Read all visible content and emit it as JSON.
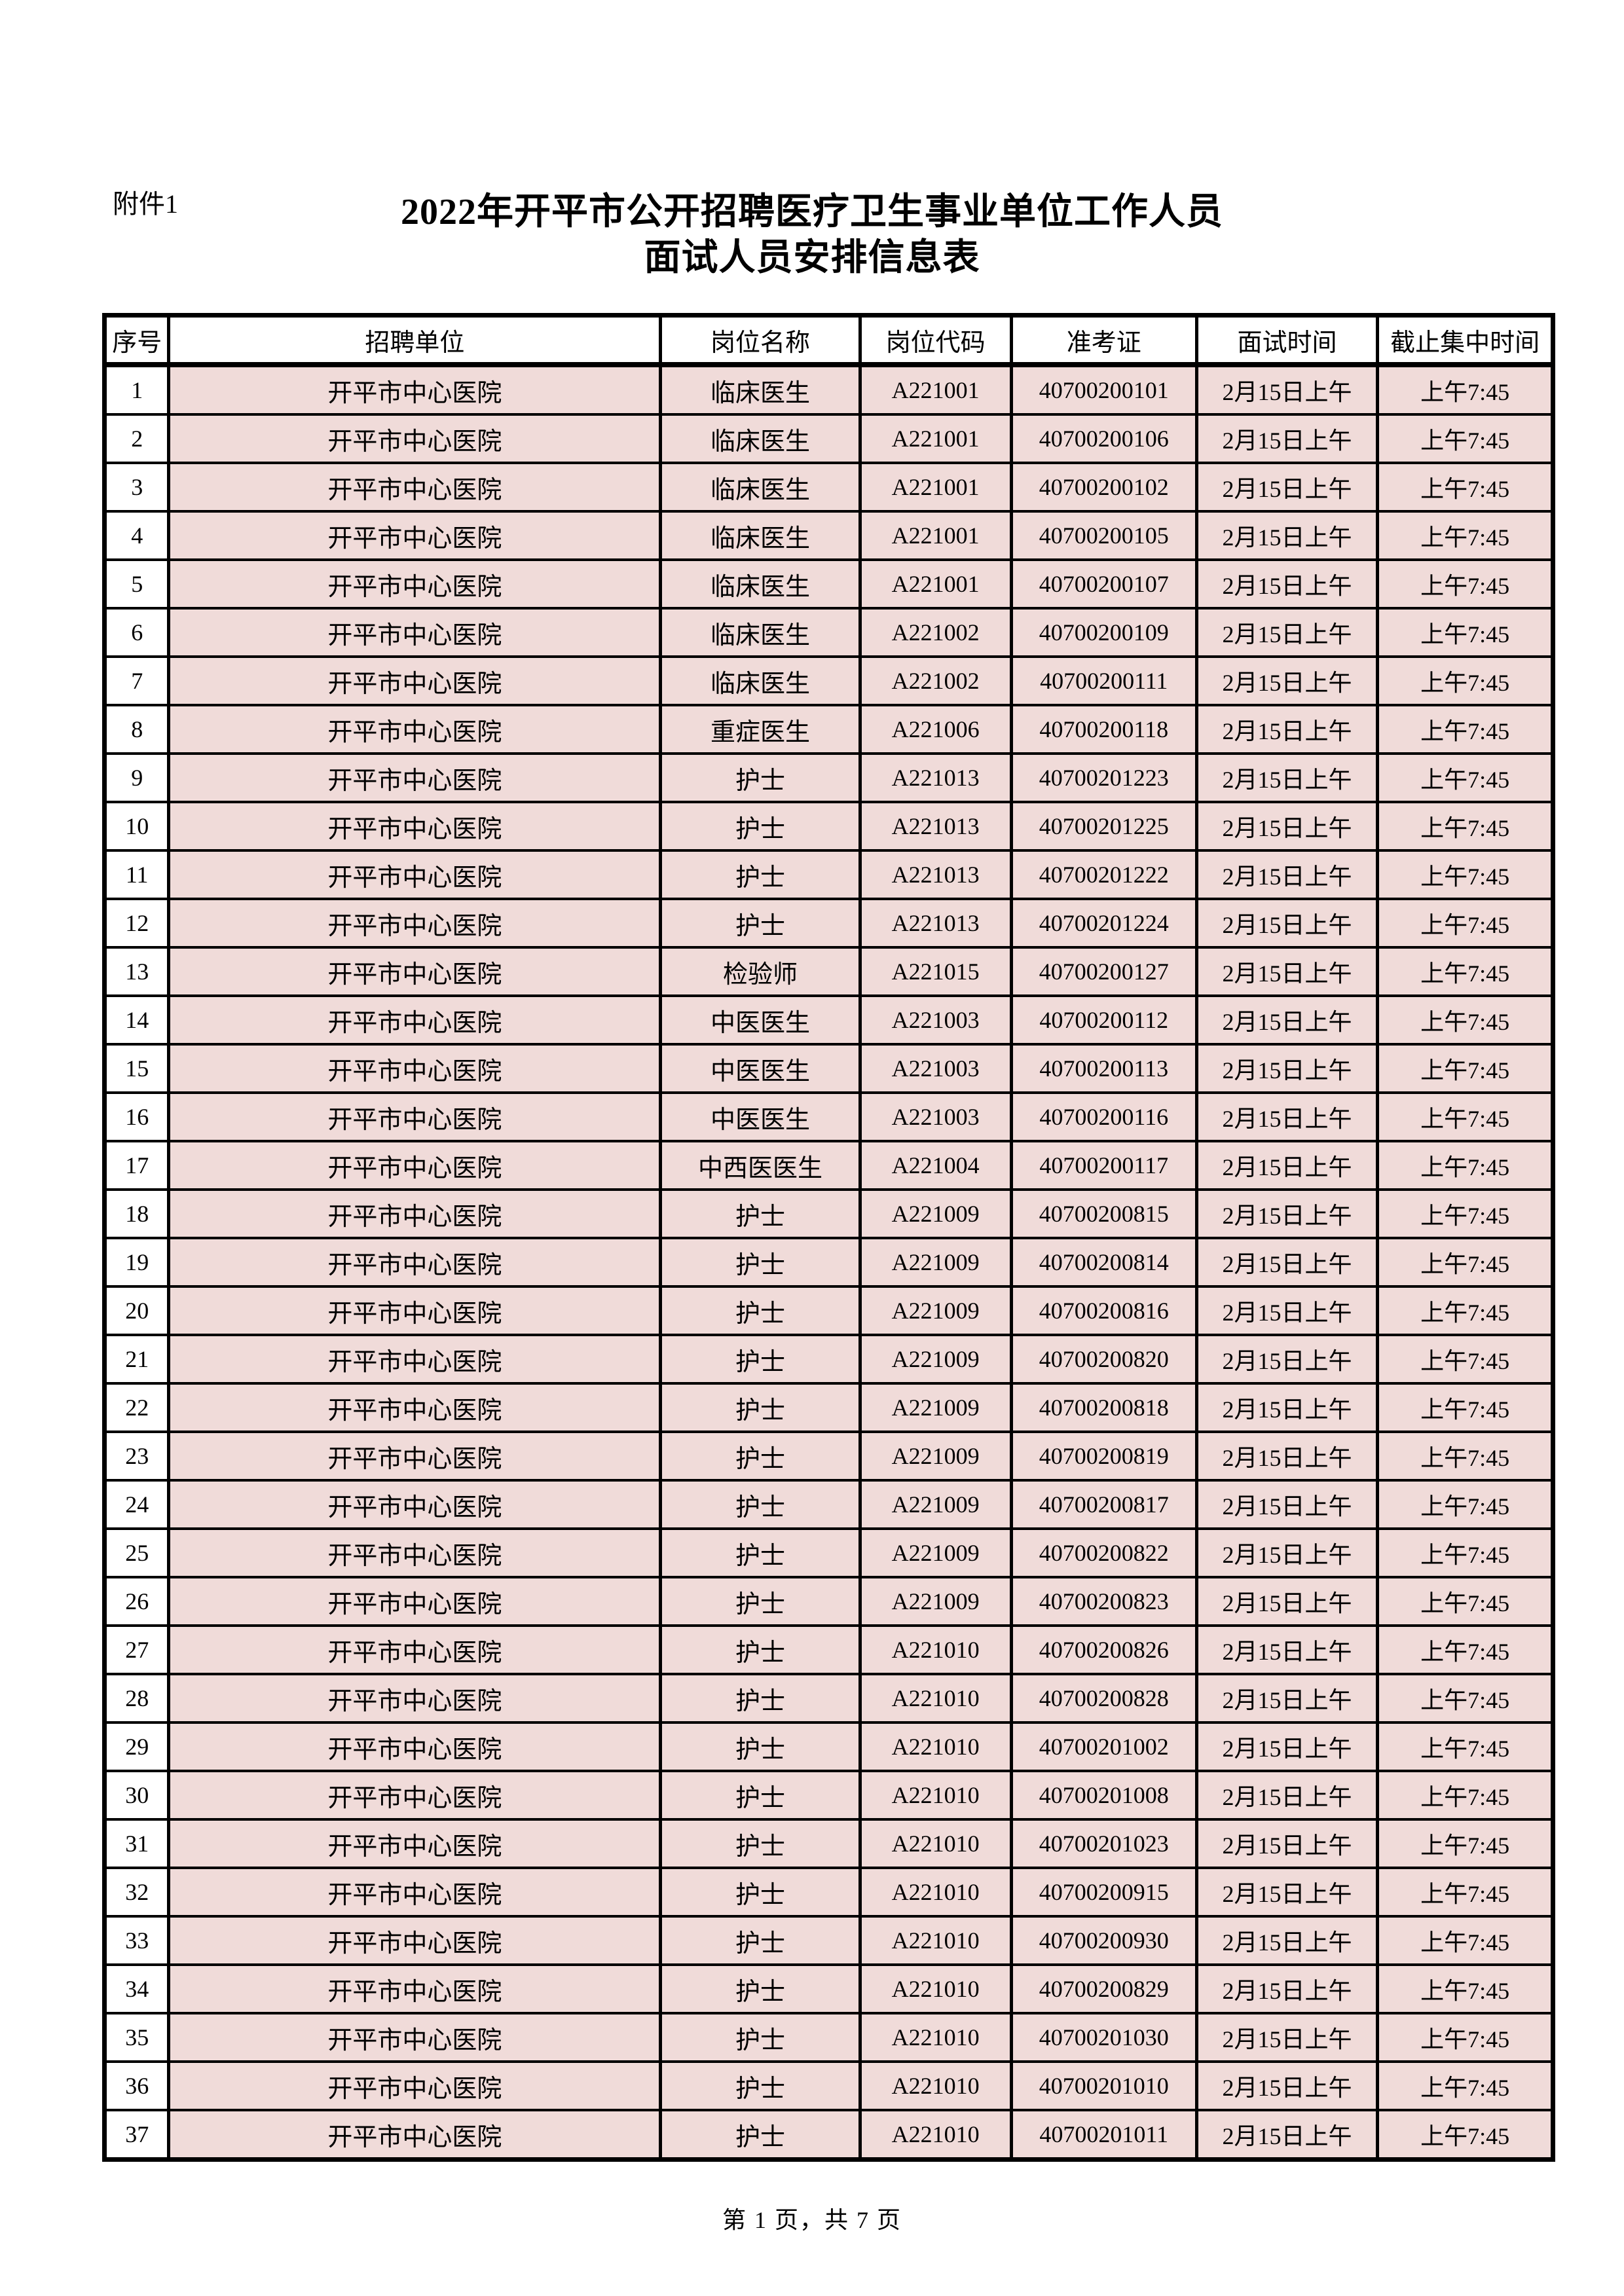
{
  "attachment_label": "附件1",
  "title_line1": "2022年开平市公开招聘医疗卫生事业单位工作人员",
  "title_line2": "面试人员安排信息表",
  "footer": "第 1 页，共 7 页",
  "colors": {
    "row_fill": "#f0dbd9",
    "border": "#000000",
    "page_bg": "#ffffff"
  },
  "table": {
    "headers": [
      "序号",
      "招聘单位",
      "岗位名称",
      "岗位代码",
      "准考证",
      "面试时间",
      "截止集中时间"
    ],
    "rows": [
      [
        "1",
        "开平市中心医院",
        "临床医生",
        "A221001",
        "40700200101",
        "2月15日上午",
        "上午7:45"
      ],
      [
        "2",
        "开平市中心医院",
        "临床医生",
        "A221001",
        "40700200106",
        "2月15日上午",
        "上午7:45"
      ],
      [
        "3",
        "开平市中心医院",
        "临床医生",
        "A221001",
        "40700200102",
        "2月15日上午",
        "上午7:45"
      ],
      [
        "4",
        "开平市中心医院",
        "临床医生",
        "A221001",
        "40700200105",
        "2月15日上午",
        "上午7:45"
      ],
      [
        "5",
        "开平市中心医院",
        "临床医生",
        "A221001",
        "40700200107",
        "2月15日上午",
        "上午7:45"
      ],
      [
        "6",
        "开平市中心医院",
        "临床医生",
        "A221002",
        "40700200109",
        "2月15日上午",
        "上午7:45"
      ],
      [
        "7",
        "开平市中心医院",
        "临床医生",
        "A221002",
        "40700200111",
        "2月15日上午",
        "上午7:45"
      ],
      [
        "8",
        "开平市中心医院",
        "重症医生",
        "A221006",
        "40700200118",
        "2月15日上午",
        "上午7:45"
      ],
      [
        "9",
        "开平市中心医院",
        "护士",
        "A221013",
        "40700201223",
        "2月15日上午",
        "上午7:45"
      ],
      [
        "10",
        "开平市中心医院",
        "护士",
        "A221013",
        "40700201225",
        "2月15日上午",
        "上午7:45"
      ],
      [
        "11",
        "开平市中心医院",
        "护士",
        "A221013",
        "40700201222",
        "2月15日上午",
        "上午7:45"
      ],
      [
        "12",
        "开平市中心医院",
        "护士",
        "A221013",
        "40700201224",
        "2月15日上午",
        "上午7:45"
      ],
      [
        "13",
        "开平市中心医院",
        "检验师",
        "A221015",
        "40700200127",
        "2月15日上午",
        "上午7:45"
      ],
      [
        "14",
        "开平市中心医院",
        "中医医生",
        "A221003",
        "40700200112",
        "2月15日上午",
        "上午7:45"
      ],
      [
        "15",
        "开平市中心医院",
        "中医医生",
        "A221003",
        "40700200113",
        "2月15日上午",
        "上午7:45"
      ],
      [
        "16",
        "开平市中心医院",
        "中医医生",
        "A221003",
        "40700200116",
        "2月15日上午",
        "上午7:45"
      ],
      [
        "17",
        "开平市中心医院",
        "中西医医生",
        "A221004",
        "40700200117",
        "2月15日上午",
        "上午7:45"
      ],
      [
        "18",
        "开平市中心医院",
        "护士",
        "A221009",
        "40700200815",
        "2月15日上午",
        "上午7:45"
      ],
      [
        "19",
        "开平市中心医院",
        "护士",
        "A221009",
        "40700200814",
        "2月15日上午",
        "上午7:45"
      ],
      [
        "20",
        "开平市中心医院",
        "护士",
        "A221009",
        "40700200816",
        "2月15日上午",
        "上午7:45"
      ],
      [
        "21",
        "开平市中心医院",
        "护士",
        "A221009",
        "40700200820",
        "2月15日上午",
        "上午7:45"
      ],
      [
        "22",
        "开平市中心医院",
        "护士",
        "A221009",
        "40700200818",
        "2月15日上午",
        "上午7:45"
      ],
      [
        "23",
        "开平市中心医院",
        "护士",
        "A221009",
        "40700200819",
        "2月15日上午",
        "上午7:45"
      ],
      [
        "24",
        "开平市中心医院",
        "护士",
        "A221009",
        "40700200817",
        "2月15日上午",
        "上午7:45"
      ],
      [
        "25",
        "开平市中心医院",
        "护士",
        "A221009",
        "40700200822",
        "2月15日上午",
        "上午7:45"
      ],
      [
        "26",
        "开平市中心医院",
        "护士",
        "A221009",
        "40700200823",
        "2月15日上午",
        "上午7:45"
      ],
      [
        "27",
        "开平市中心医院",
        "护士",
        "A221010",
        "40700200826",
        "2月15日上午",
        "上午7:45"
      ],
      [
        "28",
        "开平市中心医院",
        "护士",
        "A221010",
        "40700200828",
        "2月15日上午",
        "上午7:45"
      ],
      [
        "29",
        "开平市中心医院",
        "护士",
        "A221010",
        "40700201002",
        "2月15日上午",
        "上午7:45"
      ],
      [
        "30",
        "开平市中心医院",
        "护士",
        "A221010",
        "40700201008",
        "2月15日上午",
        "上午7:45"
      ],
      [
        "31",
        "开平市中心医院",
        "护士",
        "A221010",
        "40700201023",
        "2月15日上午",
        "上午7:45"
      ],
      [
        "32",
        "开平市中心医院",
        "护士",
        "A221010",
        "40700200915",
        "2月15日上午",
        "上午7:45"
      ],
      [
        "33",
        "开平市中心医院",
        "护士",
        "A221010",
        "40700200930",
        "2月15日上午",
        "上午7:45"
      ],
      [
        "34",
        "开平市中心医院",
        "护士",
        "A221010",
        "40700200829",
        "2月15日上午",
        "上午7:45"
      ],
      [
        "35",
        "开平市中心医院",
        "护士",
        "A221010",
        "40700201030",
        "2月15日上午",
        "上午7:45"
      ],
      [
        "36",
        "开平市中心医院",
        "护士",
        "A221010",
        "40700201010",
        "2月15日上午",
        "上午7:45"
      ],
      [
        "37",
        "开平市中心医院",
        "护士",
        "A221010",
        "40700201011",
        "2月15日上午",
        "上午7:45"
      ]
    ]
  }
}
